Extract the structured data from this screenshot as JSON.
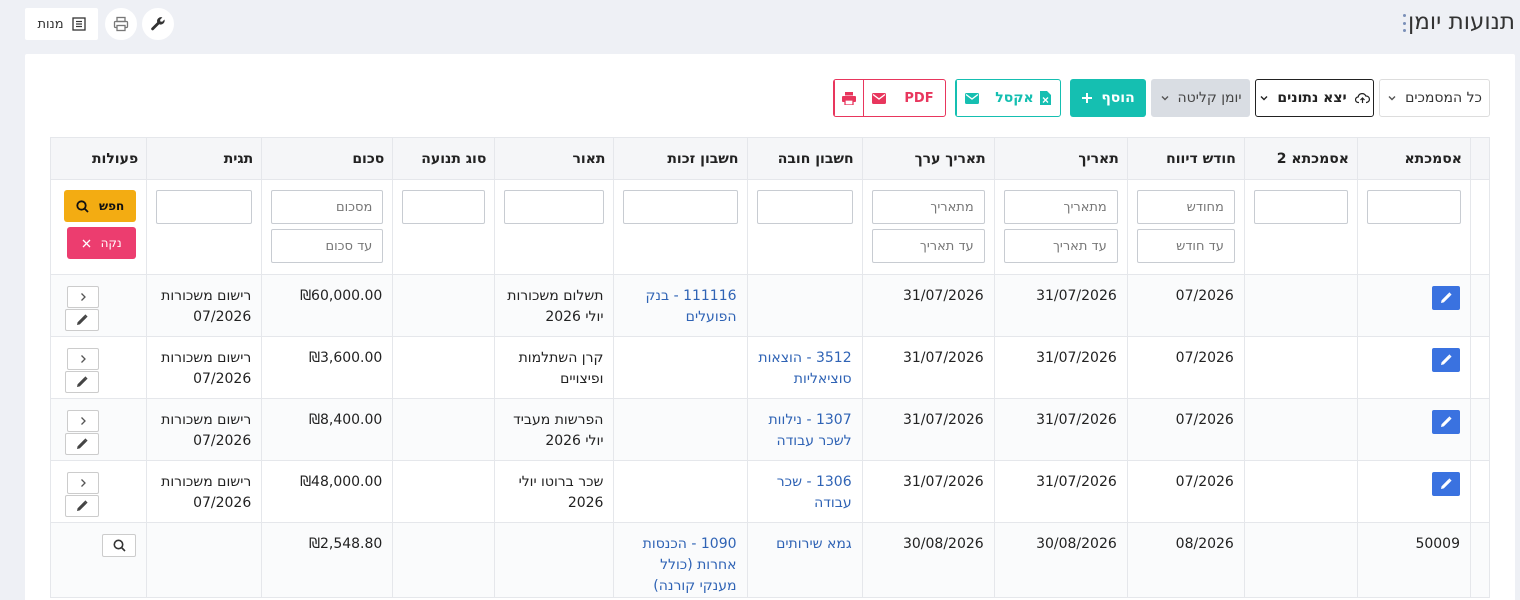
{
  "header": {
    "title": "תנועות יומן",
    "mnot_label": "מנות"
  },
  "toolbar": {
    "all_filter_label": "כל המסמכים",
    "export_label": "יצא נתונים",
    "journal_label": "יומן קליטה",
    "add_label": "הוסף",
    "excel_label": "אקסל",
    "pdf_label": "PDF"
  },
  "table": {
    "columns": [
      "אסמכתא",
      "אסמכתא 2",
      "חודש דיווח",
      "תאריך",
      "תאריך ערך",
      "חשבון חובה",
      "חשבון זכות",
      "תאור",
      "סוג תנועה",
      "סכום",
      "תגית",
      "פעולות"
    ],
    "filters": {
      "month_from": "מחודש",
      "month_to": "עד חודש",
      "date_from": "מתאריך",
      "date_to": "עד תאריך",
      "value_date_from": "מתאריך",
      "value_date_to": "עד תאריך",
      "amount_from": "מסכום",
      "amount_to": "עד סכום",
      "search_label": "חפש",
      "clear_label": "נקה"
    },
    "rows": [
      {
        "ref": "",
        "ref2": "",
        "month": "07/2026",
        "date": "31/07/2026",
        "value_date": "31/07/2026",
        "debit": "",
        "credit": "111116 - בנק הפועלים",
        "desc": "תשלום משכורות יולי 2026",
        "type": "",
        "amount": "₪60,000.00",
        "tag": "רישום משכורות 07/2026"
      },
      {
        "ref": "",
        "ref2": "",
        "month": "07/2026",
        "date": "31/07/2026",
        "value_date": "31/07/2026",
        "debit": "3512 - הוצאות סוציאליות",
        "credit": "",
        "desc": "קרן השתלמות ופיצויים",
        "type": "",
        "amount": "₪3,600.00",
        "tag": "רישום משכורות 07/2026"
      },
      {
        "ref": "",
        "ref2": "",
        "month": "07/2026",
        "date": "31/07/2026",
        "value_date": "31/07/2026",
        "debit": "1307 - נילוות לשכר עבודה",
        "credit": "",
        "desc": "הפרשות מעביד יולי 2026",
        "type": "",
        "amount": "₪8,400.00",
        "tag": "רישום משכורות 07/2026"
      },
      {
        "ref": "",
        "ref2": "",
        "month": "07/2026",
        "date": "31/07/2026",
        "value_date": "31/07/2026",
        "debit": "1306 - שכר עבודה",
        "credit": "",
        "desc": "שכר ברוטו יולי 2026",
        "type": "",
        "amount": "₪48,000.00",
        "tag": "רישום משכורות 07/2026"
      },
      {
        "ref": "50009",
        "ref2": "",
        "month": "08/2026",
        "date": "30/08/2026",
        "value_date": "30/08/2026",
        "debit": "גמא שירותים",
        "credit": "1090 - הכנסות אחרות (כולל מענקי קורנה)",
        "desc": "",
        "type": "",
        "amount": "₪2,548.80",
        "tag": ""
      }
    ]
  },
  "colors": {
    "accent": "#15bfb1",
    "danger": "#e8365d",
    "edit": "#3a72e0",
    "search": "#f3ac12",
    "link": "#2f63b5"
  }
}
